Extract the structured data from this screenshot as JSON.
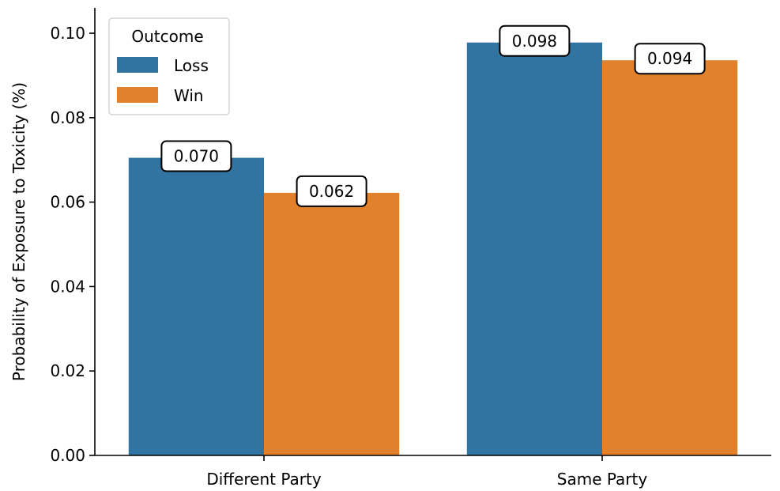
{
  "chart_data": {
    "type": "bar",
    "categories": [
      "Different Party",
      "Same Party"
    ],
    "series": [
      {
        "name": "Loss",
        "color": "#3274a1",
        "values": [
          0.0705,
          0.0978
        ],
        "errors": [
          0.0002,
          0.0004
        ]
      },
      {
        "name": "Win",
        "color": "#e1812c",
        "values": [
          0.0622,
          0.0936
        ],
        "errors": [
          0.0001,
          0.0005
        ]
      }
    ],
    "data_labels": [
      [
        "0.070",
        "0.098"
      ],
      [
        "0.062",
        "0.094"
      ]
    ],
    "title": "",
    "xlabel": "",
    "ylabel": "Probability of Exposure to Toxicity (%)",
    "ylim": [
      0,
      0.106
    ],
    "yticks": [
      0.0,
      0.02,
      0.04,
      0.06,
      0.08,
      0.1
    ],
    "ytick_labels": [
      "0.00",
      "0.02",
      "0.04",
      "0.06",
      "0.08",
      "0.10"
    ],
    "legend": {
      "title": "Outcome",
      "placement": "top-left"
    },
    "grid": false
  }
}
